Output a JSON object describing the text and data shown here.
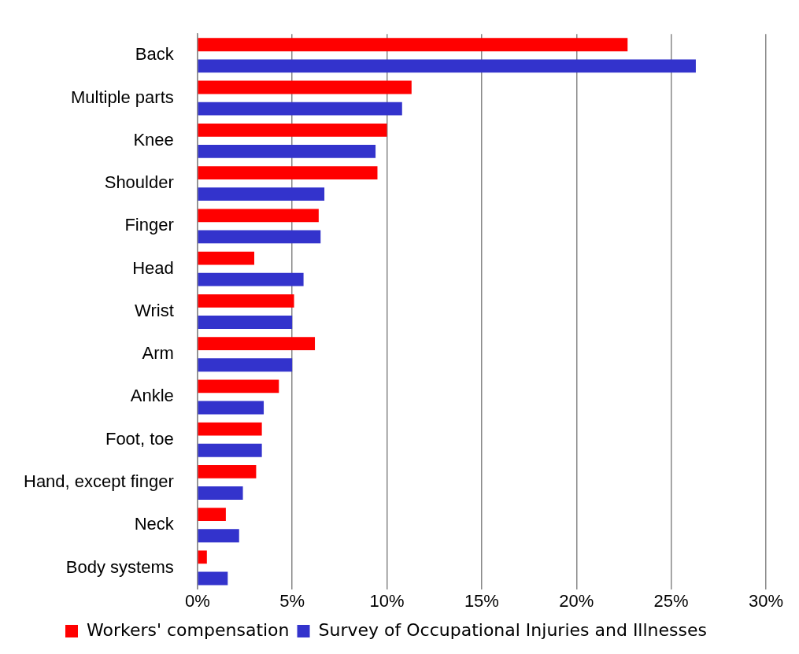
{
  "chart_data": {
    "type": "bar",
    "orientation": "horizontal",
    "categories": [
      "Back",
      "Multiple parts",
      "Knee",
      "Shoulder",
      "Finger",
      "Head",
      "Wrist",
      "Arm",
      "Ankle",
      "Foot, toe",
      "Hand, except finger",
      "Neck",
      "Body systems"
    ],
    "series": [
      {
        "name": "Workers' compensation",
        "color": "#ff0000",
        "values": [
          22.7,
          11.3,
          10.0,
          9.5,
          6.4,
          3.0,
          5.1,
          6.2,
          4.3,
          3.4,
          3.1,
          1.5,
          0.5
        ]
      },
      {
        "name": "Survey of Occupational Injuries and Illnesses",
        "color": "#3333cc",
        "values": [
          26.3,
          10.8,
          9.4,
          6.7,
          6.5,
          5.6,
          5.0,
          5.0,
          3.5,
          3.4,
          2.4,
          2.2,
          1.6
        ]
      }
    ],
    "xlim": [
      0,
      30
    ],
    "xticks": [
      {
        "value": 0,
        "label": "0%"
      },
      {
        "value": 5,
        "label": "5%"
      },
      {
        "value": 10,
        "label": "10%"
      },
      {
        "value": 15,
        "label": "15%"
      },
      {
        "value": 20,
        "label": "20%"
      },
      {
        "value": 25,
        "label": "25%"
      },
      {
        "value": 30,
        "label": "30%"
      }
    ],
    "grid": "x",
    "legend": "bottom"
  }
}
